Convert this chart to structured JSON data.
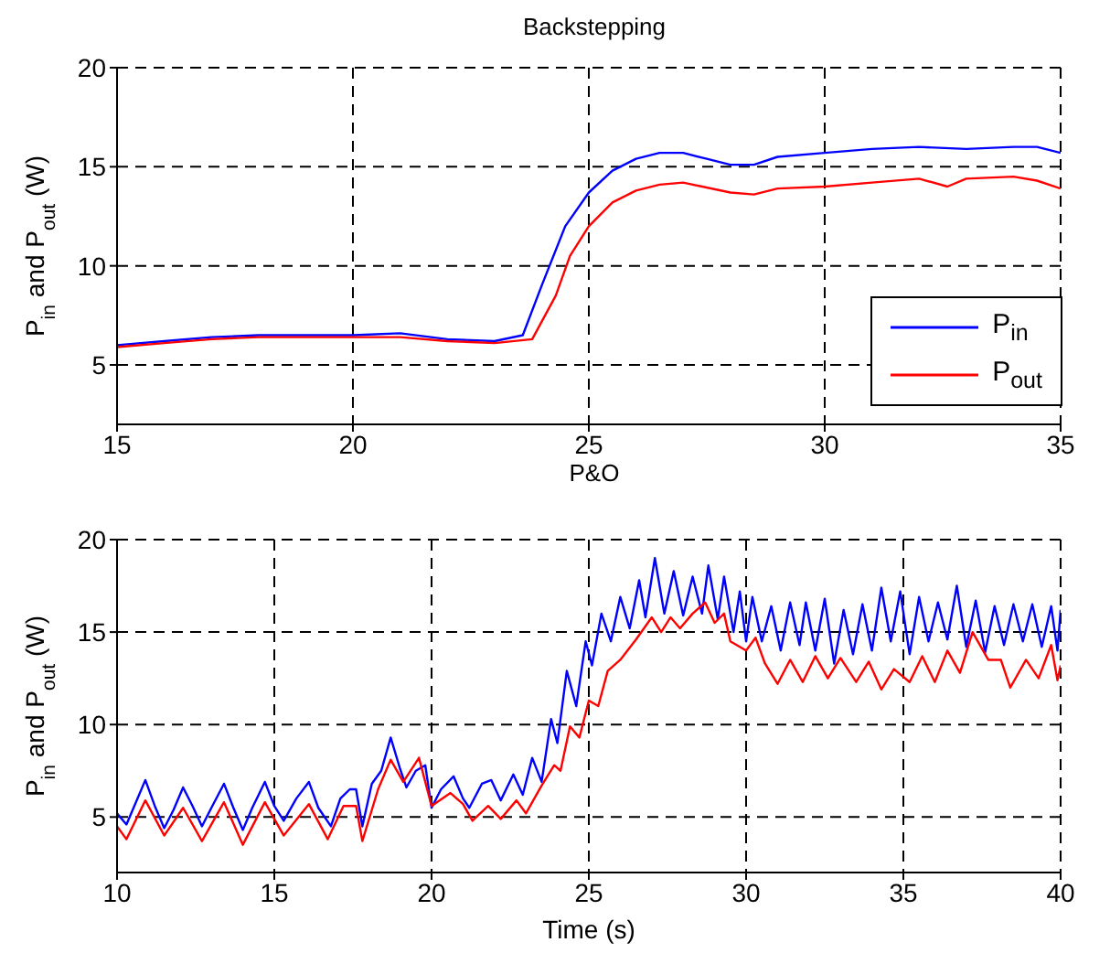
{
  "chart_data": [
    {
      "type": "line",
      "title": "Backstepping",
      "ylabel": "P$_{in}$ and P$_{out}$ (W)",
      "xlim": [
        15,
        35
      ],
      "xticks": [
        15,
        20,
        25,
        30,
        35
      ],
      "ylim": [
        2,
        20
      ],
      "yticks": [
        5,
        10,
        15,
        20
      ],
      "grid": true,
      "legend": "bottom right",
      "series": [
        {
          "name": "P$_{in}$",
          "color": "#0000ff",
          "x": [
            15,
            16,
            17,
            18,
            20,
            21,
            22,
            23,
            23.6,
            24,
            24.5,
            25,
            25.5,
            26,
            26.5,
            27,
            27.5,
            28,
            28.5,
            29,
            30,
            31,
            32,
            33,
            34,
            34.5,
            35
          ],
          "values": [
            6.0,
            6.2,
            6.4,
            6.5,
            6.5,
            6.6,
            6.3,
            6.2,
            6.5,
            9,
            12,
            13.7,
            14.8,
            15.4,
            15.7,
            15.7,
            15.4,
            15.1,
            15.1,
            15.5,
            15.7,
            15.9,
            16,
            15.9,
            16,
            16,
            15.7
          ]
        },
        {
          "name": "P$_{out}$",
          "color": "#ff0000",
          "x": [
            15,
            16,
            17,
            18,
            20,
            21,
            22,
            23,
            23.8,
            24.3,
            24.6,
            25,
            25.5,
            26,
            26.5,
            27,
            28,
            28.5,
            29,
            30,
            31,
            32,
            32.6,
            33,
            34,
            34.5,
            35
          ],
          "values": [
            5.9,
            6.1,
            6.3,
            6.4,
            6.4,
            6.4,
            6.2,
            6.1,
            6.3,
            8.5,
            10.5,
            12,
            13.2,
            13.8,
            14.1,
            14.2,
            13.7,
            13.6,
            13.9,
            14.0,
            14.2,
            14.4,
            14.0,
            14.4,
            14.5,
            14.3,
            13.9
          ]
        }
      ]
    },
    {
      "type": "line",
      "title": "P&O",
      "xlabel": "Time (s)",
      "ylabel": "P$_{in}$ and P$_{out}$ (W)",
      "xlim": [
        10,
        40
      ],
      "xticks": [
        10,
        15,
        20,
        25,
        30,
        35,
        40
      ],
      "ylim": [
        2,
        20
      ],
      "yticks": [
        5,
        10,
        15,
        20
      ],
      "grid": true,
      "series": [
        {
          "color": "#0000ff",
          "x": [
            10,
            10.3,
            10.6,
            10.9,
            11.2,
            11.5,
            11.8,
            12.1,
            12.4,
            12.7,
            13.0,
            13.4,
            13.7,
            14.0,
            14.3,
            14.7,
            15.0,
            15.3,
            15.7,
            16.1,
            16.4,
            16.8,
            17.1,
            17.4,
            17.6,
            17.8,
            18.1,
            18.4,
            18.7,
            19.0,
            19.2,
            19.5,
            19.8,
            20.0,
            20.3,
            20.7,
            21.0,
            21.2,
            21.6,
            21.9,
            22.2,
            22.6,
            22.9,
            23.2,
            23.5,
            23.8,
            24.0,
            24.3,
            24.6,
            24.9,
            25.1,
            25.4,
            25.7,
            26.0,
            26.3,
            26.6,
            26.8,
            27.1,
            27.4,
            27.7,
            28.0,
            28.3,
            28.6,
            28.8,
            29.1,
            29.3,
            29.6,
            29.8,
            30.0,
            30.2,
            30.5,
            30.8,
            31.1,
            31.4,
            31.7,
            31.9,
            32.2,
            32.5,
            32.8,
            33.1,
            33.4,
            33.7,
            34.0,
            34.3,
            34.6,
            34.9,
            35.2,
            35.5,
            35.8,
            36.1,
            36.4,
            36.7,
            37.0,
            37.3,
            37.6,
            37.9,
            38.2,
            38.5,
            38.8,
            39.1,
            39.4,
            39.7,
            39.9,
            40
          ],
          "values": [
            5.2,
            4.6,
            5.8,
            7.0,
            5.6,
            4.4,
            5.4,
            6.6,
            5.6,
            4.5,
            5.5,
            6.8,
            5.5,
            4.3,
            5.5,
            6.9,
            5.6,
            4.8,
            6.0,
            6.9,
            5.5,
            4.5,
            6.0,
            6.5,
            6.5,
            4.5,
            6.8,
            7.5,
            9.3,
            7.6,
            6.6,
            7.5,
            7.8,
            5.5,
            6.5,
            7.2,
            6.0,
            5.5,
            6.8,
            7.0,
            5.9,
            7.3,
            6.2,
            8.2,
            6.9,
            10.3,
            9.0,
            12.9,
            11.0,
            14.5,
            13.2,
            16.0,
            14.5,
            16.9,
            15.2,
            17.8,
            15.8,
            19.0,
            16.0,
            18.3,
            15.9,
            18.0,
            16.0,
            18.6,
            15.7,
            18.0,
            15.0,
            17.2,
            14.5,
            16.9,
            14.5,
            16.4,
            14.0,
            16.6,
            14.3,
            16.6,
            14.0,
            16.8,
            13.3,
            16.2,
            13.8,
            16.5,
            14.0,
            17.4,
            14.5,
            17.2,
            13.8,
            16.9,
            14.5,
            16.6,
            14.6,
            17.5,
            14.2,
            16.7,
            13.9,
            16.4,
            14.3,
            16.5,
            14.5,
            16.5,
            14.2,
            16.4,
            14.0,
            16.2
          ]
        },
        {
          "color": "#ff0000",
          "x": [
            10,
            10.3,
            10.9,
            11.5,
            12.1,
            12.7,
            13.4,
            14.0,
            14.7,
            15.3,
            16.1,
            16.7,
            17.2,
            17.6,
            17.8,
            18.3,
            18.7,
            19.1,
            19.6,
            20.0,
            20.6,
            21.0,
            21.3,
            21.8,
            22.2,
            22.7,
            23.0,
            23.5,
            23.9,
            24.1,
            24.4,
            24.7,
            25.0,
            25.3,
            25.6,
            26.0,
            26.5,
            27.0,
            27.3,
            27.6,
            27.9,
            28.3,
            28.7,
            29.0,
            29.3,
            29.5,
            30.0,
            30.3,
            30.6,
            31.0,
            31.4,
            31.8,
            32.2,
            32.6,
            33.0,
            33.5,
            33.9,
            34.3,
            34.7,
            35.2,
            35.6,
            36.0,
            36.4,
            36.8,
            37.2,
            37.7,
            38.1,
            38.4,
            38.9,
            39.3,
            39.7,
            39.9,
            40
          ],
          "values": [
            4.5,
            3.8,
            5.9,
            4.0,
            5.5,
            3.7,
            5.8,
            3.5,
            5.8,
            4.0,
            5.7,
            3.8,
            5.6,
            5.6,
            3.7,
            6.5,
            8.1,
            6.9,
            8.2,
            5.6,
            6.3,
            5.7,
            4.8,
            5.6,
            4.9,
            5.9,
            5.2,
            6.7,
            7.8,
            7.5,
            9.9,
            9.3,
            11.3,
            11.0,
            12.9,
            13.5,
            14.6,
            15.8,
            15.0,
            15.8,
            15.2,
            16.0,
            16.6,
            15.5,
            16.0,
            14.5,
            14.0,
            14.7,
            13.3,
            12.2,
            13.5,
            12.3,
            13.7,
            12.5,
            13.6,
            12.3,
            13.4,
            11.9,
            13.0,
            12.3,
            13.7,
            12.3,
            14.0,
            12.8,
            15.0,
            13.5,
            13.5,
            12.0,
            13.5,
            12.5,
            14.3,
            12.4,
            13.2
          ]
        }
      ]
    }
  ]
}
